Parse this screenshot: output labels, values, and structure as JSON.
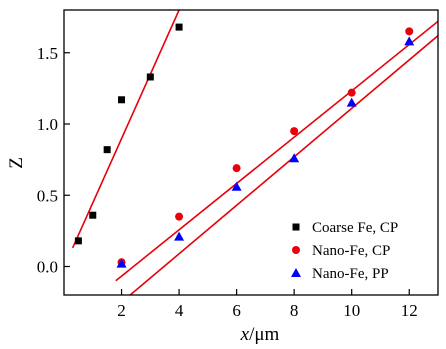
{
  "chart_data": {
    "type": "scatter",
    "title": "",
    "xlabel_italic": "x",
    "xlabel_unit": "/μm",
    "ylabel": "Z",
    "xlim": [
      0,
      13
    ],
    "ylim": [
      -0.2,
      1.8
    ],
    "x_ticks": [
      2,
      4,
      6,
      8,
      10,
      12
    ],
    "y_ticks": [
      0.0,
      0.5,
      1.0,
      1.5
    ],
    "y_tick_labels": [
      "0.0",
      "0.5",
      "1.0",
      "1.5"
    ],
    "grid": false,
    "legend_position": "bottom-right",
    "fit_line_color": "#e8000b",
    "series": [
      {
        "name": "Coarse Fe, CP",
        "marker": "square",
        "color": "#000000",
        "points": [
          [
            0.5,
            0.18
          ],
          [
            1.0,
            0.36
          ],
          [
            1.5,
            0.82
          ],
          [
            2.0,
            1.17
          ],
          [
            3.0,
            1.33
          ],
          [
            4.0,
            1.68
          ]
        ],
        "fit": {
          "x": [
            0.3,
            4.0
          ],
          "y": [
            0.13,
            1.8
          ]
        }
      },
      {
        "name": "Nano-Fe, CP",
        "marker": "circle",
        "color": "#e8000b",
        "points": [
          [
            2,
            0.03
          ],
          [
            4,
            0.35
          ],
          [
            6,
            0.69
          ],
          [
            8,
            0.95
          ],
          [
            10,
            1.22
          ],
          [
            12,
            1.65
          ]
        ],
        "fit": {
          "x": [
            1.8,
            13.0
          ],
          "y": [
            -0.1,
            1.72
          ]
        }
      },
      {
        "name": "Nano-Fe, PP",
        "marker": "triangle",
        "color": "#0000ff",
        "points": [
          [
            2,
            0.02
          ],
          [
            4,
            0.21
          ],
          [
            6,
            0.56
          ],
          [
            8,
            0.76
          ],
          [
            10,
            1.15
          ],
          [
            12,
            1.58
          ]
        ],
        "fit": {
          "x": [
            2.3,
            13.0
          ],
          "y": [
            -0.2,
            1.62
          ]
        }
      }
    ]
  }
}
